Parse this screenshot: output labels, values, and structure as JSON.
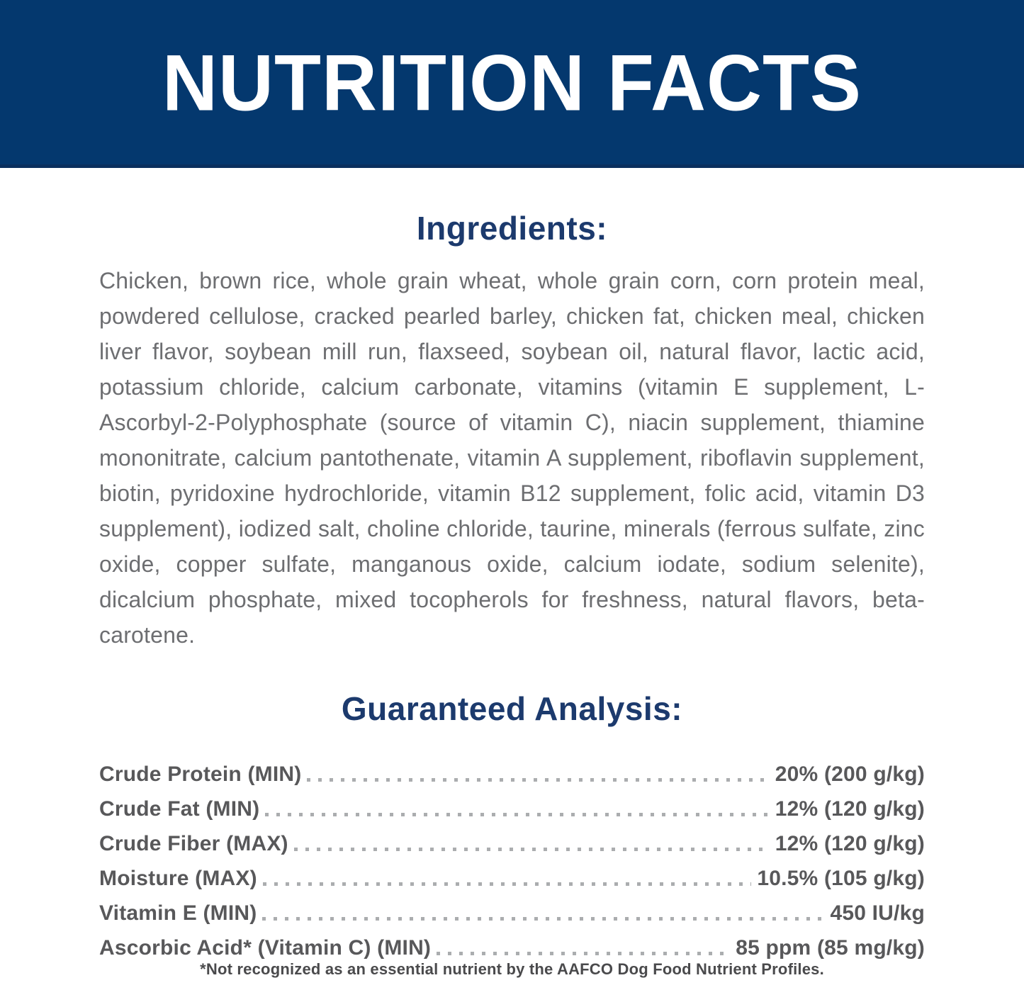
{
  "banner": {
    "title": "NUTRITION FACTS",
    "bg_color": "#04386e",
    "text_color": "#ffffff"
  },
  "ingredients": {
    "heading": "Ingredients:",
    "text": "Chicken, brown rice, whole grain wheat, whole grain corn, corn protein meal, powdered cellulose, cracked pearled barley, chicken fat, chicken meal, chicken liver flavor, soybean mill run, flaxseed, soybean oil, natural flavor, lactic acid, potassium chloride, calcium carbonate, vitamins (vitamin E supplement, L-Ascorbyl-2-Polyphosphate (source of vitamin C), niacin supplement, thiamine mononitrate, calcium pantothenate, vitamin A supplement, riboflavin supplement, biotin, pyridoxine hydrochloride, vitamin B12 supplement, folic acid, vitamin D3 supplement), iodized salt, choline chloride, taurine, minerals (ferrous sulfate, zinc oxide, copper sulfate, manganous oxide, calcium iodate, sodium selenite), dicalcium phosphate, mixed tocopherols for freshness, natural flavors, beta-carotene."
  },
  "guaranteed_analysis": {
    "heading": "Guaranteed Analysis:",
    "rows": [
      {
        "label": "Crude Protein (MIN)",
        "value": "20% (200 g/kg)"
      },
      {
        "label": "Crude Fat (MIN)",
        "value": "12% (120 g/kg)"
      },
      {
        "label": "Crude Fiber (MAX)",
        "value": "12% (120 g/kg)"
      },
      {
        "label": "Moisture (MAX)",
        "value": "10.5% (105 g/kg)"
      },
      {
        "label": "Vitamin E (MIN)",
        "value": "450 IU/kg"
      },
      {
        "label": "Ascorbic Acid* (Vitamin C) (MIN)",
        "value": "85 ppm (85 mg/kg)"
      }
    ]
  },
  "footnote": "*Not recognized as an essential nutrient by the AAFCO Dog Food Nutrient Profiles.",
  "colors": {
    "heading_navy": "#1c3a6d",
    "body_gray": "#6d6e71",
    "label_gray": "#58585a",
    "dots_gray": "#abadaf"
  }
}
